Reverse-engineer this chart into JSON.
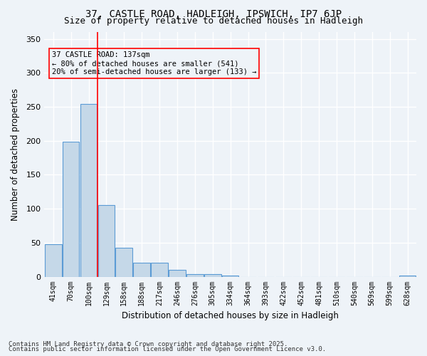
{
  "title1": "37, CASTLE ROAD, HADLEIGH, IPSWICH, IP7 6JP",
  "title2": "Size of property relative to detached houses in Hadleigh",
  "xlabel": "Distribution of detached houses by size in Hadleigh",
  "ylabel": "Number of detached properties",
  "categories": [
    "41sqm",
    "70sqm",
    "100sqm",
    "129sqm",
    "158sqm",
    "188sqm",
    "217sqm",
    "246sqm",
    "276sqm",
    "305sqm",
    "334sqm",
    "364sqm",
    "393sqm",
    "422sqm",
    "452sqm",
    "481sqm",
    "510sqm",
    "540sqm",
    "569sqm",
    "599sqm",
    "628sqm"
  ],
  "values": [
    48,
    199,
    254,
    105,
    42,
    20,
    20,
    10,
    4,
    4,
    2,
    0,
    0,
    0,
    0,
    0,
    0,
    0,
    0,
    0,
    2
  ],
  "bar_color": "#c5d8e8",
  "bar_edge_color": "#5b9bd5",
  "property_value": 137,
  "property_bin_index": 3,
  "annotation_title": "37 CASTLE ROAD: 137sqm",
  "annotation_line1": "← 80% of detached houses are smaller (541)",
  "annotation_line2": "20% of semi-detached houses are larger (133) →",
  "red_line_x": 3,
  "ylim": [
    0,
    360
  ],
  "yticks": [
    0,
    50,
    100,
    150,
    200,
    250,
    300,
    350
  ],
  "footnote1": "Contains HM Land Registry data © Crown copyright and database right 2025.",
  "footnote2": "Contains public sector information licensed under the Open Government Licence v3.0.",
  "bg_color": "#eef3f8",
  "grid_color": "#ffffff",
  "bar_width": 0.95
}
